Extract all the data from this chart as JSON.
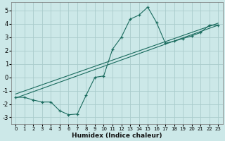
{
  "xlabel": "Humidex (Indice chaleur)",
  "ylabel": "",
  "xlim": [
    -0.5,
    23.5
  ],
  "ylim": [
    -3.5,
    5.6
  ],
  "yticks": [
    -3,
    -2,
    -1,
    0,
    1,
    2,
    3,
    4,
    5
  ],
  "xticks": [
    0,
    1,
    2,
    3,
    4,
    5,
    6,
    7,
    8,
    9,
    10,
    11,
    12,
    13,
    14,
    15,
    16,
    17,
    18,
    19,
    20,
    21,
    22,
    23
  ],
  "bg_color": "#cce8e8",
  "grid_color": "#aacccc",
  "line_color": "#1a6b5e",
  "curve_x": [
    0,
    1,
    2,
    3,
    4,
    5,
    6,
    7,
    8,
    9,
    10,
    11,
    12,
    13,
    14,
    15,
    16,
    17,
    18,
    19,
    20,
    21,
    22,
    23
  ],
  "curve_y": [
    -1.5,
    -1.5,
    -1.7,
    -1.85,
    -1.85,
    -2.5,
    -2.8,
    -2.75,
    -1.35,
    0.0,
    0.1,
    2.1,
    3.0,
    4.35,
    4.65,
    5.25,
    4.1,
    2.55,
    2.7,
    2.9,
    3.1,
    3.35,
    3.9,
    3.9
  ],
  "line1_x": [
    0,
    23
  ],
  "line1_y": [
    -1.55,
    3.9
  ],
  "line2_x": [
    0,
    23
  ],
  "line2_y": [
    -1.25,
    4.05
  ]
}
